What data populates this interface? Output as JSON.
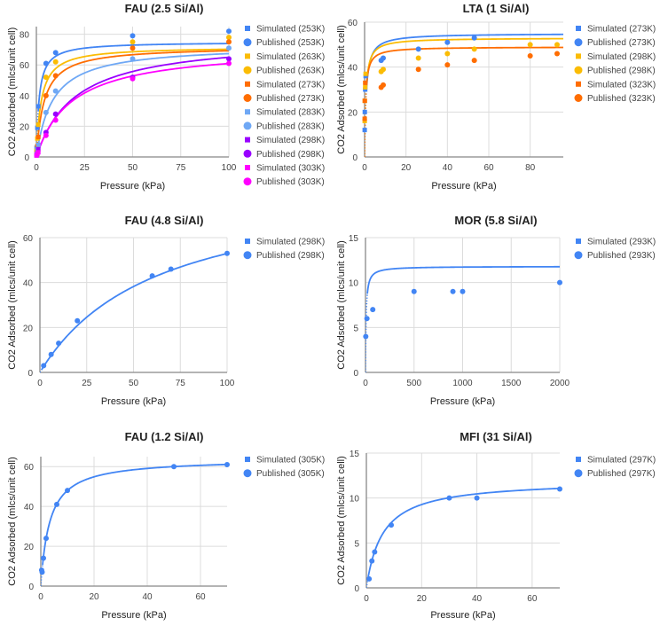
{
  "chart_data": [
    {
      "type": "scatter",
      "title": "FAU (2.5 Si/Al)",
      "xlabel": "Pressure (kPa)",
      "ylabel": "CO2 Adsorbed (mlcs/unit cell)",
      "xlim": [
        0,
        100
      ],
      "ylim": [
        0,
        85
      ],
      "xticks": [
        0,
        25,
        50,
        75,
        100
      ],
      "yticks": [
        0,
        20,
        40,
        60,
        80
      ],
      "grid": true,
      "legend": "right",
      "series": [
        {
          "name": "Simulated (253K)",
          "marker": "square",
          "color": "#4285f4",
          "trend": "langmuir",
          "qmax": 75,
          "b": 0.7,
          "x": [
            0.1,
            0.5,
            1
          ],
          "y": [
            6,
            19,
            33
          ]
        },
        {
          "name": "Published (253K)",
          "marker": "circle",
          "color": "#4285f4",
          "x": [
            5,
            10,
            50,
            100
          ],
          "y": [
            61,
            68,
            79,
            82
          ]
        },
        {
          "name": "Simulated (263K)",
          "marker": "square",
          "color": "#fbbc04",
          "trend": "langmuir",
          "qmax": 72,
          "b": 0.4,
          "x": [
            0.1,
            0.5,
            1
          ],
          "y": [
            4,
            12,
            21
          ]
        },
        {
          "name": "Published (263K)",
          "marker": "circle",
          "color": "#fbbc04",
          "x": [
            5,
            10,
            50,
            100
          ],
          "y": [
            52,
            62,
            75,
            78
          ]
        },
        {
          "name": "Simulated (273K)",
          "marker": "square",
          "color": "#ff6d01",
          "trend": "langmuir",
          "qmax": 72,
          "b": 0.25,
          "x": [
            0.1,
            0.5,
            1
          ],
          "y": [
            3,
            7,
            13
          ]
        },
        {
          "name": "Published (273K)",
          "marker": "circle",
          "color": "#ff6d01",
          "x": [
            5,
            10,
            50,
            100
          ],
          "y": [
            40,
            53,
            71,
            75
          ]
        },
        {
          "name": "Simulated (283K)",
          "marker": "square",
          "color": "#6fa8f5",
          "trend": "langmuir",
          "qmax": 73,
          "b": 0.12,
          "x": [
            0.1,
            0.5,
            1
          ],
          "y": [
            2,
            5,
            8
          ]
        },
        {
          "name": "Published (283K)",
          "marker": "circle",
          "color": "#6fa8f5",
          "x": [
            5,
            10,
            50,
            100
          ],
          "y": [
            29,
            43,
            64,
            71
          ]
        },
        {
          "name": "Simulated (298K)",
          "marker": "square",
          "color": "#9900ff",
          "trend": "langmuir",
          "qmax": 78,
          "b": 0.05,
          "x": [
            0.1,
            0.5,
            1
          ],
          "y": [
            1,
            2,
            5
          ]
        },
        {
          "name": "Published (298K)",
          "marker": "circle",
          "color": "#9900ff",
          "x": [
            5,
            10,
            50,
            100
          ],
          "y": [
            16,
            28,
            52,
            64
          ]
        },
        {
          "name": "Simulated (303K)",
          "marker": "square",
          "color": "#ff00ff",
          "trend": "langmuir",
          "qmax": 72,
          "b": 0.055,
          "x": [
            0.1,
            0.5,
            1
          ],
          "y": [
            1,
            2,
            3
          ]
        },
        {
          "name": "Published (303K)",
          "marker": "circle",
          "color": "#ff00ff",
          "x": [
            5,
            10,
            50,
            100
          ],
          "y": [
            14,
            24,
            51,
            61
          ]
        }
      ]
    },
    {
      "type": "scatter",
      "title": "LTA (1 Si/Al)",
      "xlabel": "Pressure (kPa)",
      "ylabel": "CO2 Adsorbed (mlcs/unit cell)",
      "xlim": [
        0,
        96
      ],
      "ylim": [
        0,
        60
      ],
      "xticks": [
        0,
        20,
        40,
        60,
        80
      ],
      "yticks": [
        0,
        20,
        40,
        60
      ],
      "grid": true,
      "legend": "right",
      "series": [
        {
          "name": "Simulated (273K)",
          "marker": "square",
          "color": "#4285f4",
          "trend": "langmuir",
          "qmax": 55,
          "b": 1.3,
          "x": [
            0.05,
            0.1,
            0.3,
            0.5
          ],
          "y": [
            12,
            20,
            30,
            36
          ]
        },
        {
          "name": "Published (273K)",
          "marker": "circle",
          "color": "#4285f4",
          "x": [
            8,
            9,
            26,
            40,
            53
          ],
          "y": [
            43,
            44,
            48,
            51,
            53
          ]
        },
        {
          "name": "Simulated (298K)",
          "marker": "square",
          "color": "#fbbc04",
          "trend": "langmuir",
          "qmax": 53,
          "b": 1.6,
          "x": [
            0.05,
            0.1,
            0.3,
            0.5
          ],
          "y": [
            16,
            25,
            31,
            37
          ]
        },
        {
          "name": "Published (298K)",
          "marker": "circle",
          "color": "#fbbc04",
          "x": [
            8,
            9,
            26,
            40,
            53,
            80,
            93
          ],
          "y": [
            38,
            39,
            44,
            46,
            48,
            50,
            50
          ]
        },
        {
          "name": "Simulated (323K)",
          "marker": "square",
          "color": "#ff6d01",
          "trend": "langmuir",
          "qmax": 49,
          "b": 2.0,
          "x": [
            0.05,
            0.1,
            0.3
          ],
          "y": [
            17,
            25,
            33
          ]
        },
        {
          "name": "Published (323K)",
          "marker": "circle",
          "color": "#ff6d01",
          "x": [
            8,
            9,
            26,
            40,
            53,
            80,
            93
          ],
          "y": [
            31,
            32,
            39,
            41,
            43,
            45,
            46
          ]
        }
      ]
    },
    {
      "type": "scatter",
      "title": "FAU (4.8 Si/Al)",
      "xlabel": "Pressure (kPa)",
      "ylabel": "CO2 Adsorbed (mlcs/unit cell)",
      "xlim": [
        0,
        100
      ],
      "ylim": [
        0,
        60
      ],
      "xticks": [
        0,
        25,
        50,
        75,
        100
      ],
      "yticks": [
        0,
        20,
        40,
        60
      ],
      "grid": true,
      "legend": "right",
      "series": [
        {
          "name": "Simulated (298K)",
          "marker": "square",
          "color": "#4285f4",
          "trend": "langmuir",
          "qmax": 86,
          "b": 0.016,
          "x": [],
          "y": []
        },
        {
          "name": "Published (298K)",
          "marker": "circle",
          "color": "#4285f4",
          "x": [
            2,
            6,
            10,
            20,
            60,
            70,
            100
          ],
          "y": [
            3,
            8,
            13,
            23,
            43,
            46,
            53
          ]
        }
      ]
    },
    {
      "type": "scatter",
      "title": "MOR (5.8 Si/Al)",
      "xlabel": "Pressure (kPa)",
      "ylabel": "CO2 Adsorbed (mlcs/unit cell)",
      "xlim": [
        0,
        2000
      ],
      "ylim": [
        0,
        15
      ],
      "xticks": [
        0,
        500,
        1000,
        1500,
        2000
      ],
      "yticks": [
        0,
        5,
        10,
        15
      ],
      "grid": true,
      "legend": "right",
      "series": [
        {
          "name": "Simulated (293K)",
          "marker": "square",
          "color": "#4285f4",
          "trend": "langmuir",
          "qmax": 11.8,
          "b": 0.15,
          "x": [],
          "y": []
        },
        {
          "name": "Published (293K)",
          "marker": "circle",
          "color": "#4285f4",
          "x": [
            3,
            15,
            75,
            500,
            900,
            1000,
            2000
          ],
          "y": [
            4,
            6,
            7,
            9,
            9,
            9,
            10
          ]
        }
      ]
    },
    {
      "type": "scatter",
      "title": "FAU (1.2 Si/Al)",
      "xlabel": "Pressure (kPa)",
      "ylabel": "CO2 Adsorbed (mlcs/unit cell)",
      "xlim": [
        0,
        70
      ],
      "ylim": [
        0,
        65
      ],
      "xticks": [
        0,
        20,
        40,
        60
      ],
      "yticks": [
        0,
        20,
        40,
        60
      ],
      "grid": true,
      "legend": "right",
      "series": [
        {
          "name": "Simulated (305K)",
          "marker": "square",
          "color": "#4285f4",
          "trend": "langmuir",
          "qmax": 64,
          "b": 0.3,
          "x": [],
          "y": []
        },
        {
          "name": "Published (305K)",
          "marker": "circle",
          "color": "#4285f4",
          "x": [
            0.3,
            0.5,
            1,
            2,
            6,
            10,
            50,
            70
          ],
          "y": [
            8,
            7,
            14,
            24,
            41,
            48,
            60,
            61
          ]
        }
      ]
    },
    {
      "type": "scatter",
      "title": "MFI (31 Si/Al)",
      "xlabel": "Pressure (kPa)",
      "ylabel": "CO2 Adsorbed (mlcs/unit cell)",
      "xlim": [
        0,
        70
      ],
      "ylim": [
        0,
        15
      ],
      "xticks": [
        0,
        20,
        40,
        60
      ],
      "yticks": [
        0,
        5,
        10,
        15
      ],
      "grid": true,
      "legend": "right",
      "series": [
        {
          "name": "Simulated (297K)",
          "marker": "square",
          "color": "#4285f4",
          "trend": "langmuir",
          "qmax": 12,
          "b": 0.17,
          "x": [],
          "y": []
        },
        {
          "name": "Published (297K)",
          "marker": "circle",
          "color": "#4285f4",
          "x": [
            1,
            2,
            3,
            9,
            30,
            40,
            70
          ],
          "y": [
            1,
            3,
            4,
            7,
            10,
            10,
            11
          ]
        }
      ]
    }
  ]
}
